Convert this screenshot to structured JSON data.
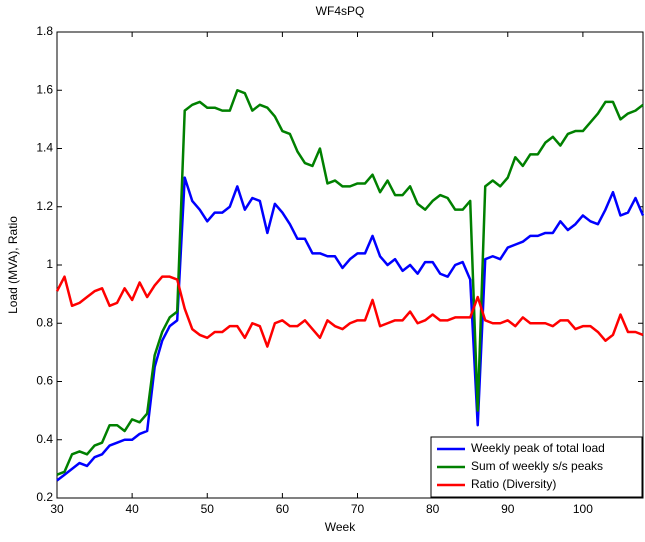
{
  "chart_data": {
    "type": "line",
    "title": "WF4sPQ",
    "x_label": "Week",
    "y_label": "Load (MVA), Ratio",
    "x": [
      30,
      31,
      32,
      33,
      34,
      35,
      36,
      37,
      38,
      39,
      40,
      41,
      42,
      43,
      44,
      45,
      46,
      47,
      48,
      49,
      50,
      51,
      52,
      53,
      54,
      55,
      56,
      57,
      58,
      59,
      60,
      61,
      62,
      63,
      64,
      65,
      66,
      67,
      68,
      69,
      70,
      71,
      72,
      73,
      74,
      75,
      76,
      77,
      78,
      79,
      80,
      81,
      82,
      83,
      84,
      85,
      86,
      87,
      88,
      89,
      90,
      91,
      92,
      93,
      94,
      95,
      96,
      97,
      98,
      99,
      100,
      101,
      102,
      103,
      104,
      105,
      106,
      107,
      108
    ],
    "series": [
      {
        "name": "Weekly peak of total load",
        "color": "#0000ff",
        "values": [
          0.26,
          0.28,
          0.3,
          0.32,
          0.31,
          0.34,
          0.35,
          0.38,
          0.39,
          0.4,
          0.4,
          0.42,
          0.43,
          0.65,
          0.74,
          0.79,
          0.81,
          1.3,
          1.22,
          1.19,
          1.15,
          1.18,
          1.18,
          1.2,
          1.27,
          1.19,
          1.23,
          1.22,
          1.11,
          1.21,
          1.18,
          1.14,
          1.09,
          1.09,
          1.04,
          1.04,
          1.03,
          1.03,
          0.99,
          1.02,
          1.04,
          1.04,
          1.1,
          1.03,
          1.0,
          1.02,
          0.98,
          1.0,
          0.97,
          1.01,
          1.01,
          0.97,
          0.96,
          1.0,
          1.01,
          0.95,
          0.45,
          1.02,
          1.03,
          1.02,
          1.06,
          1.07,
          1.08,
          1.1,
          1.1,
          1.11,
          1.11,
          1.15,
          1.12,
          1.14,
          1.17,
          1.15,
          1.14,
          1.19,
          1.25,
          1.17,
          1.18,
          1.23,
          1.17
        ]
      },
      {
        "name": "Sum of weekly s/s peaks",
        "color": "#008000",
        "values": [
          0.28,
          0.29,
          0.35,
          0.36,
          0.35,
          0.38,
          0.39,
          0.45,
          0.45,
          0.43,
          0.47,
          0.46,
          0.49,
          0.69,
          0.77,
          0.82,
          0.84,
          1.53,
          1.55,
          1.56,
          1.54,
          1.54,
          1.53,
          1.53,
          1.6,
          1.59,
          1.53,
          1.55,
          1.54,
          1.51,
          1.46,
          1.45,
          1.39,
          1.35,
          1.34,
          1.4,
          1.28,
          1.29,
          1.27,
          1.27,
          1.28,
          1.28,
          1.31,
          1.25,
          1.29,
          1.24,
          1.24,
          1.27,
          1.21,
          1.19,
          1.22,
          1.24,
          1.23,
          1.19,
          1.19,
          1.22,
          0.5,
          1.27,
          1.29,
          1.27,
          1.3,
          1.37,
          1.34,
          1.38,
          1.38,
          1.42,
          1.44,
          1.41,
          1.45,
          1.46,
          1.46,
          1.49,
          1.52,
          1.56,
          1.56,
          1.5,
          1.52,
          1.53,
          1.55
        ]
      },
      {
        "name": "Ratio (Diversity)",
        "color": "#ff0000",
        "values": [
          0.91,
          0.96,
          0.86,
          0.87,
          0.89,
          0.91,
          0.92,
          0.86,
          0.87,
          0.92,
          0.88,
          0.94,
          0.89,
          0.93,
          0.96,
          0.96,
          0.95,
          0.85,
          0.78,
          0.76,
          0.75,
          0.77,
          0.77,
          0.79,
          0.79,
          0.75,
          0.8,
          0.79,
          0.72,
          0.8,
          0.81,
          0.79,
          0.79,
          0.81,
          0.78,
          0.75,
          0.81,
          0.79,
          0.78,
          0.8,
          0.81,
          0.81,
          0.88,
          0.79,
          0.8,
          0.81,
          0.81,
          0.84,
          0.8,
          0.81,
          0.83,
          0.81,
          0.81,
          0.82,
          0.82,
          0.82,
          0.89,
          0.81,
          0.8,
          0.8,
          0.81,
          0.79,
          0.82,
          0.8,
          0.8,
          0.8,
          0.79,
          0.81,
          0.81,
          0.78,
          0.79,
          0.79,
          0.77,
          0.74,
          0.76,
          0.83,
          0.77,
          0.77,
          0.76
        ]
      }
    ],
    "xlim": [
      30,
      108
    ],
    "ylim": [
      0.2,
      1.8
    ],
    "xticks": [
      30,
      40,
      50,
      60,
      70,
      80,
      90,
      100
    ],
    "yticks": [
      0.2,
      0.4,
      0.6,
      0.8,
      1,
      1.2,
      1.4,
      1.6,
      1.8
    ],
    "legend": "lower right"
  }
}
